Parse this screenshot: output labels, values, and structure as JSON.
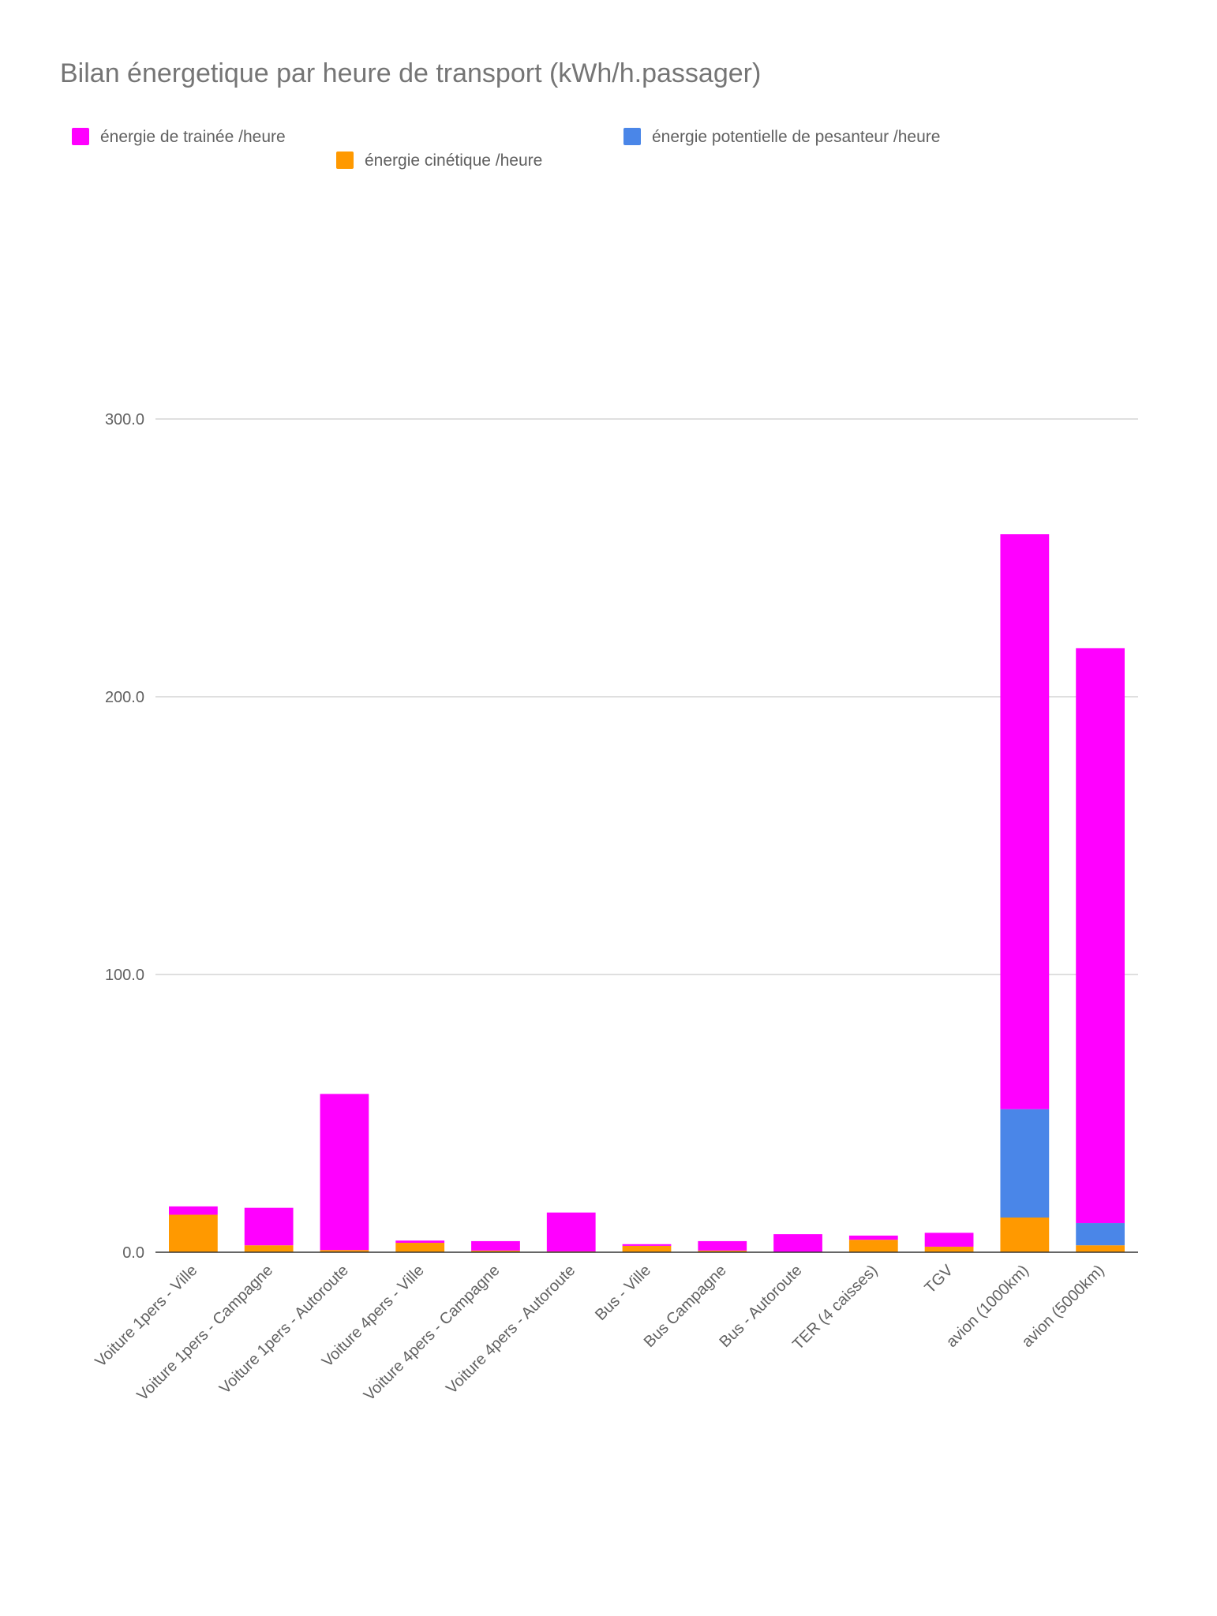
{
  "chart_data": {
    "type": "bar",
    "stacked": true,
    "title": "Bilan énergetique par heure de transport (kWh/h.passager)",
    "xlabel": "",
    "ylabel": "",
    "ylim": [
      0,
      300
    ],
    "yticks": [
      0,
      100,
      200,
      300
    ],
    "ytick_labels": [
      "0.0",
      "100.0",
      "200.0",
      "300.0"
    ],
    "grid": true,
    "legend_position": "top",
    "categories": [
      "Voiture 1pers - Ville",
      "Voiture 1pers - Campagne",
      "Voiture 1pers - Autoroute",
      "Voiture 4pers - Ville",
      "Voiture 4pers - Campagne",
      "Voiture 4pers - Autoroute",
      "Bus - Ville",
      "Bus Campagne",
      "Bus - Autoroute",
      "TER (4 caisses)",
      "TGV",
      "avion (1000km)",
      "avion (5000km)"
    ],
    "series": [
      {
        "name": "énergie cinétique /heure",
        "color": "#ff9900",
        "values": [
          13.5,
          2.5,
          0.8,
          3.4,
          0.6,
          0.3,
          2.3,
          0.6,
          0.1,
          4.5,
          2.0,
          12.5,
          2.5
        ]
      },
      {
        "name": "énergie potentielle de pesanteur /heure",
        "color": "#4a86e8",
        "values": [
          0,
          0,
          0,
          0,
          0,
          0,
          0,
          0,
          0,
          0,
          0,
          39.0,
          8.0
        ]
      },
      {
        "name": "énergie de trainée /heure",
        "color": "#ff00ff",
        "values": [
          3.0,
          13.5,
          56.2,
          0.8,
          3.4,
          14.0,
          0.6,
          3.4,
          6.4,
          1.5,
          5.0,
          207.0,
          207.0
        ]
      }
    ]
  }
}
